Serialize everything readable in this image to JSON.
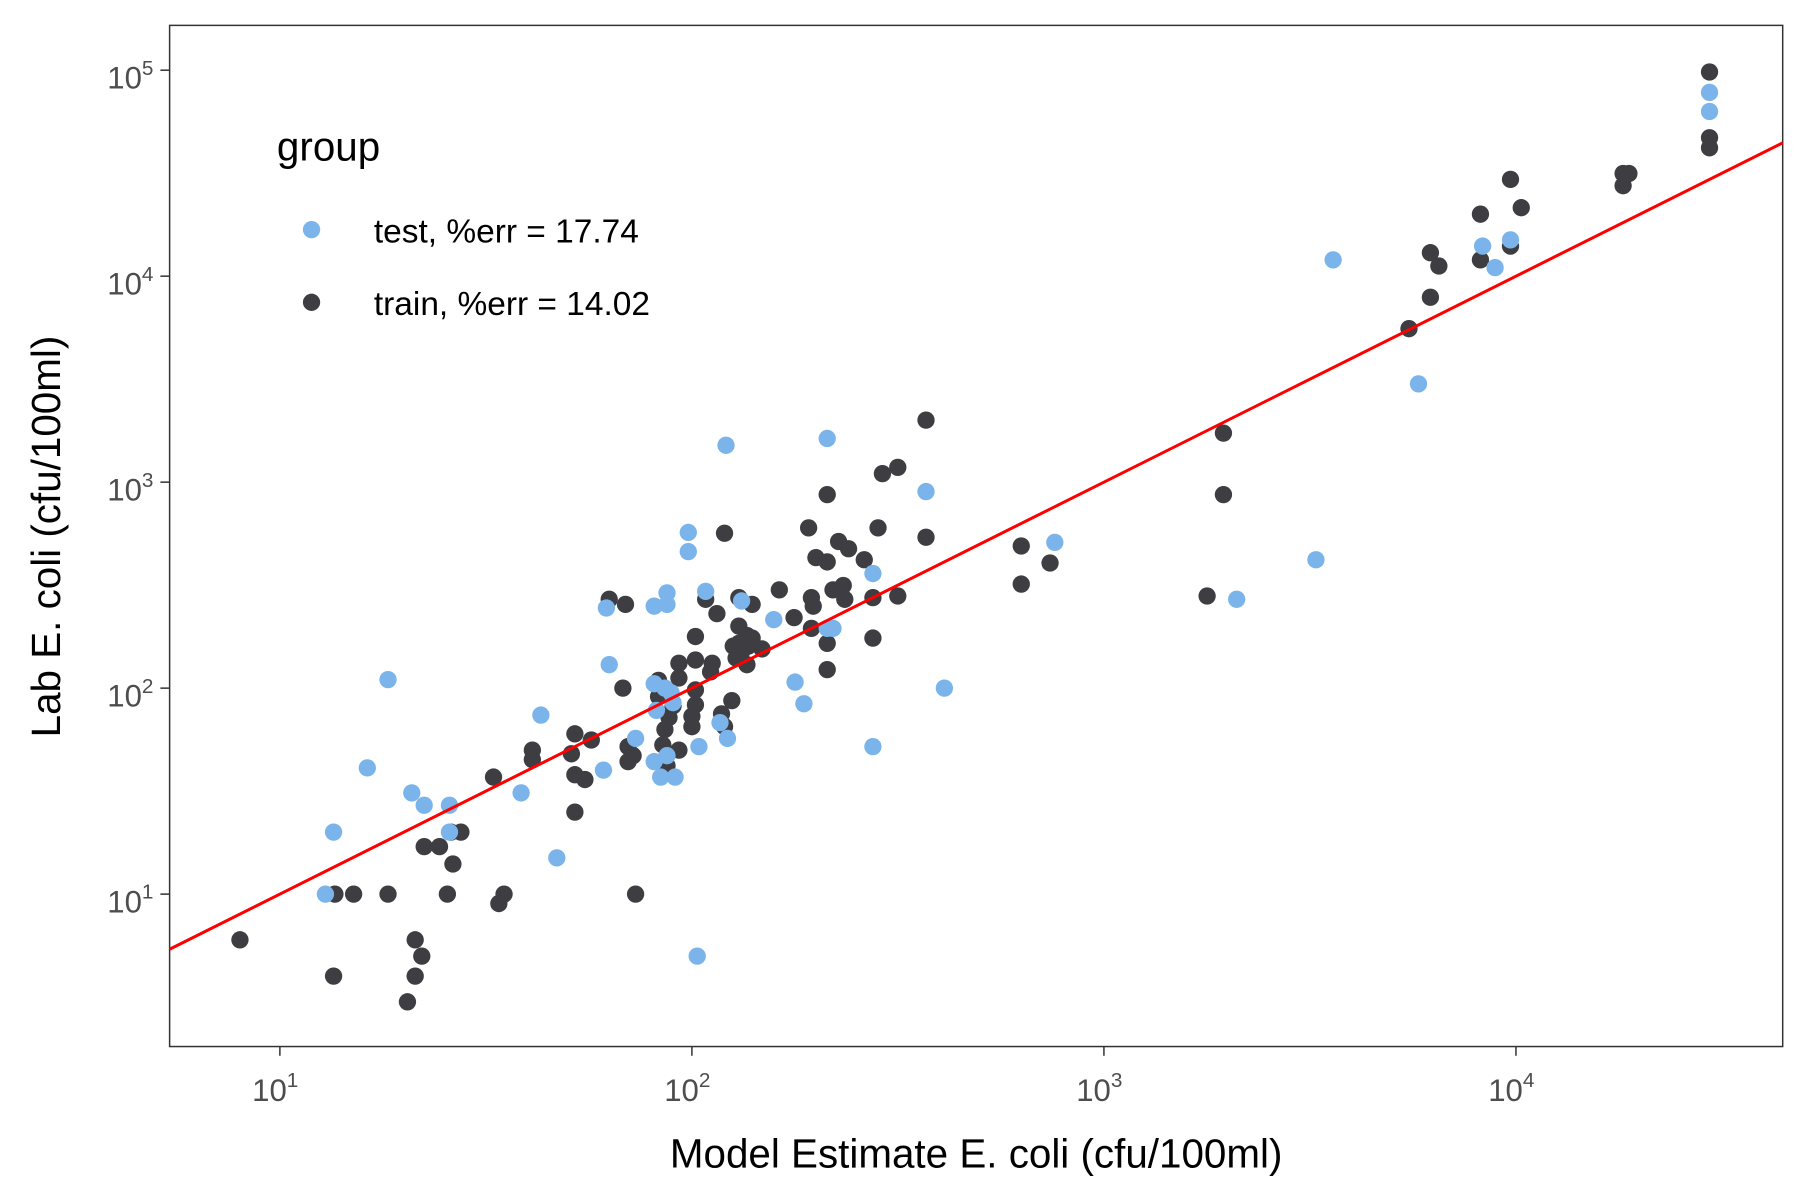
{
  "chart_data": {
    "type": "scatter",
    "xlabel": "Model Estimate E. coli (cfu/100ml)",
    "ylabel": "Lab E. coli (cfu/100ml)",
    "x_scale": "log10",
    "y_scale": "log10",
    "xlim": [
      5.4,
      44400
    ],
    "ylim": [
      1.82,
      165000
    ],
    "x_ticks": [
      {
        "base": "10",
        "exp": "1",
        "value": 10
      },
      {
        "base": "10",
        "exp": "2",
        "value": 100
      },
      {
        "base": "10",
        "exp": "3",
        "value": 1000
      },
      {
        "base": "10",
        "exp": "4",
        "value": 10000
      }
    ],
    "y_ticks": [
      {
        "base": "10",
        "exp": "1",
        "value": 10
      },
      {
        "base": "10",
        "exp": "2",
        "value": 100
      },
      {
        "base": "10",
        "exp": "3",
        "value": 1000
      },
      {
        "base": "10",
        "exp": "4",
        "value": 10000
      },
      {
        "base": "10",
        "exp": "5",
        "value": 100000
      }
    ],
    "grid": false,
    "legend": {
      "title": "group",
      "placement": "top-left inside"
    },
    "reference_line": {
      "type": "y = x",
      "color": "#ff0000"
    },
    "series": [
      {
        "name": "train, %err = 14.02",
        "color": "#3d3d42",
        "points": [
          [
            29500,
            98000
          ],
          [
            29500,
            47000
          ],
          [
            29500,
            42000
          ],
          [
            18200,
            31500
          ],
          [
            18800,
            31500
          ],
          [
            18200,
            27500
          ],
          [
            9700,
            29500
          ],
          [
            10300,
            21500
          ],
          [
            8200,
            20000
          ],
          [
            8200,
            12000
          ],
          [
            9700,
            14000
          ],
          [
            6200,
            13000
          ],
          [
            6500,
            11200
          ],
          [
            6200,
            7900
          ],
          [
            5500,
            5560
          ],
          [
            1950,
            1730
          ],
          [
            1950,
            870
          ],
          [
            1780,
            280
          ],
          [
            630,
            490
          ],
          [
            630,
            320
          ],
          [
            740,
            405
          ],
          [
            370,
            2000
          ],
          [
            370,
            540
          ],
          [
            316,
            1180
          ],
          [
            290,
            1100
          ],
          [
            283,
            600
          ],
          [
            316,
            280
          ],
          [
            275,
            275
          ],
          [
            275,
            175
          ],
          [
            213,
            870
          ],
          [
            192,
            600
          ],
          [
            227,
            515
          ],
          [
            240,
            475
          ],
          [
            262,
            420
          ],
          [
            200,
            430
          ],
          [
            213,
            410
          ],
          [
            233,
            315
          ],
          [
            220,
            300
          ],
          [
            235,
            270
          ],
          [
            195,
            275
          ],
          [
            197,
            250
          ],
          [
            195,
            195
          ],
          [
            213,
            165
          ],
          [
            213,
            123
          ],
          [
            177,
            220
          ],
          [
            163,
            300
          ],
          [
            120,
            565
          ],
          [
            108,
            270
          ],
          [
            130,
            275
          ],
          [
            140,
            255
          ],
          [
            115,
            230
          ],
          [
            130,
            200
          ],
          [
            136,
            180
          ],
          [
            140,
            175
          ],
          [
            130,
            165
          ],
          [
            126,
            160
          ],
          [
            137,
            160
          ],
          [
            132,
            150
          ],
          [
            148,
            155
          ],
          [
            128,
            140
          ],
          [
            136,
            130
          ],
          [
            112,
            132
          ],
          [
            102,
            137
          ],
          [
            111,
            120
          ],
          [
            102,
            178
          ],
          [
            93,
            132
          ],
          [
            93,
            112
          ],
          [
            102,
            98
          ],
          [
            102,
            83
          ],
          [
            83,
            109
          ],
          [
            83,
            91
          ],
          [
            100,
            73
          ],
          [
            100,
            65
          ],
          [
            88,
            72
          ],
          [
            90,
            82
          ],
          [
            86,
            63
          ],
          [
            85,
            53
          ],
          [
            87,
            42
          ],
          [
            93,
            50
          ],
          [
            125,
            87
          ],
          [
            118,
            75
          ],
          [
            120,
            65
          ],
          [
            70,
            52
          ],
          [
            72,
            47
          ],
          [
            70,
            44
          ],
          [
            68,
            100
          ],
          [
            69,
            255
          ],
          [
            63,
            270
          ],
          [
            57,
            56
          ],
          [
            52,
            60
          ],
          [
            51,
            48
          ],
          [
            52,
            38
          ],
          [
            55,
            36
          ],
          [
            52,
            25
          ],
          [
            41,
            50
          ],
          [
            41,
            45
          ],
          [
            33,
            37
          ],
          [
            35,
            10
          ],
          [
            34,
            9
          ],
          [
            27.5,
            20
          ],
          [
            26,
            20
          ],
          [
            26.3,
            14
          ],
          [
            25.5,
            10
          ],
          [
            24.4,
            17
          ],
          [
            22.4,
            17
          ],
          [
            22.1,
            5
          ],
          [
            21.3,
            6
          ],
          [
            21.3,
            4
          ],
          [
            20.4,
            3
          ],
          [
            18.3,
            10
          ],
          [
            15.1,
            10
          ],
          [
            13.6,
            10
          ],
          [
            13.5,
            4
          ],
          [
            8,
            6
          ],
          [
            73,
            10
          ]
        ]
      },
      {
        "name": "test, %err = 17.74",
        "color": "#7ab4eb",
        "points": [
          [
            29500,
            78000
          ],
          [
            29500,
            63000
          ],
          [
            3600,
            12000
          ],
          [
            8300,
            14000
          ],
          [
            8900,
            11000
          ],
          [
            9700,
            15000
          ],
          [
            5800,
            3000
          ],
          [
            3270,
            420
          ],
          [
            2100,
            270
          ],
          [
            760,
            510
          ],
          [
            370,
            900
          ],
          [
            410,
            100
          ],
          [
            275,
            360
          ],
          [
            275,
            52
          ],
          [
            213,
            1630
          ],
          [
            121,
            1510
          ],
          [
            98,
            570
          ],
          [
            98,
            460
          ],
          [
            108,
            295
          ],
          [
            132,
            265
          ],
          [
            158,
            215
          ],
          [
            213,
            195
          ],
          [
            220,
            195
          ],
          [
            178,
            107
          ],
          [
            187,
            84
          ],
          [
            87,
            290
          ],
          [
            87,
            255
          ],
          [
            81,
            250
          ],
          [
            62,
            245
          ],
          [
            63,
            130
          ],
          [
            81,
            105
          ],
          [
            86,
            100
          ],
          [
            89,
            95
          ],
          [
            82,
            78
          ],
          [
            90,
            85
          ],
          [
            117,
            68
          ],
          [
            122,
            57
          ],
          [
            104,
            52
          ],
          [
            73,
            57
          ],
          [
            61,
            40
          ],
          [
            81,
            44
          ],
          [
            84,
            37
          ],
          [
            91,
            37
          ],
          [
            87,
            47
          ],
          [
            103,
            5
          ],
          [
            43,
            74
          ],
          [
            38.5,
            31
          ],
          [
            47,
            15
          ],
          [
            18.3,
            110
          ],
          [
            16.3,
            41
          ],
          [
            20.9,
            31
          ],
          [
            22.4,
            27
          ],
          [
            25.8,
            27
          ],
          [
            25.8,
            20
          ],
          [
            13.5,
            20
          ],
          [
            12.9,
            10
          ]
        ]
      }
    ]
  }
}
